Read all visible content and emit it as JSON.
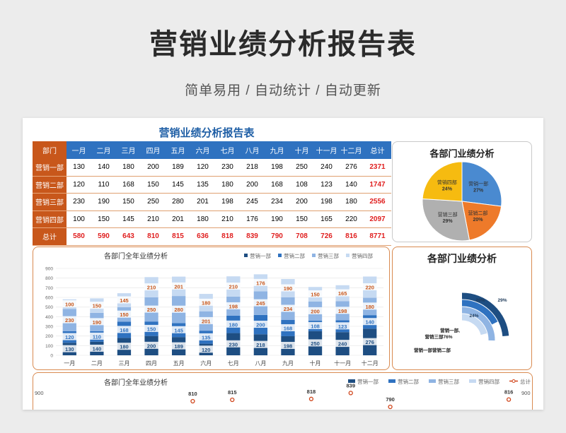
{
  "page": {
    "title": "营销业绩分析报告表",
    "subtitle": "简单易用 / 自动统计 / 自动更新"
  },
  "sheet": {
    "title": "营销业绩分析报告表",
    "columns": [
      "部门",
      "一月",
      "二月",
      "三月",
      "四月",
      "五月",
      "六月",
      "七月",
      "八月",
      "九月",
      "十月",
      "十一月",
      "十二月",
      "总计"
    ],
    "rows": [
      {
        "dept": "营销一部",
        "values": [
          "130",
          "140",
          "180",
          "200",
          "189",
          "120",
          "230",
          "218",
          "198",
          "250",
          "240",
          "276"
        ],
        "total": "2371"
      },
      {
        "dept": "营销二部",
        "values": [
          "120",
          "110",
          "168",
          "150",
          "145",
          "135",
          "180",
          "200",
          "168",
          "108",
          "123",
          "140"
        ],
        "total": "1747"
      },
      {
        "dept": "营销三部",
        "values": [
          "230",
          "190",
          "150",
          "250",
          "280",
          "201",
          "198",
          "245",
          "234",
          "200",
          "198",
          "180"
        ],
        "total": "2556"
      },
      {
        "dept": "营销四部",
        "values": [
          "100",
          "150",
          "145",
          "210",
          "201",
          "180",
          "210",
          "176",
          "190",
          "150",
          "165",
          "220"
        ],
        "total": "2097"
      }
    ],
    "total_row": {
      "dept": "总计",
      "values": [
        "580",
        "590",
        "643",
        "810",
        "815",
        "636",
        "818",
        "839",
        "790",
        "708",
        "726",
        "816"
      ],
      "total": "8771"
    }
  },
  "colors": {
    "dept1": "#1e4e82",
    "dept2": "#2f72c0",
    "dept3": "#8fb4e3",
    "dept4": "#c6daf2",
    "total": "#d0451b",
    "accent": "#c8571b"
  },
  "chart_data": [
    {
      "type": "pie",
      "title": "各部门业绩分析",
      "labels": [
        "营销一部",
        "营销二部",
        "营销三部",
        "营销四部"
      ],
      "values": [
        27,
        20,
        29,
        24
      ],
      "value_labels": [
        "27%",
        "20%",
        "29%",
        "24%"
      ]
    },
    {
      "type": "bar",
      "stacked": true,
      "title": "各部门全年业绩分析",
      "categories": [
        "一月",
        "二月",
        "三月",
        "四月",
        "五月",
        "六月",
        "七月",
        "八月",
        "九月",
        "十月",
        "十一月",
        "十二月"
      ],
      "series": [
        {
          "name": "营销一部",
          "values": [
            130,
            140,
            180,
            200,
            189,
            120,
            230,
            218,
            198,
            250,
            240,
            276
          ]
        },
        {
          "name": "营销二部",
          "values": [
            120,
            110,
            168,
            150,
            145,
            135,
            180,
            200,
            168,
            108,
            123,
            140
          ]
        },
        {
          "name": "营销三部",
          "values": [
            230,
            190,
            150,
            250,
            280,
            201,
            198,
            245,
            234,
            200,
            198,
            180
          ]
        },
        {
          "name": "营销四部",
          "values": [
            100,
            150,
            145,
            210,
            201,
            180,
            210,
            176,
            190,
            150,
            165,
            220
          ]
        }
      ],
      "ylim": [
        0,
        900
      ],
      "yticks": [
        0,
        100,
        200,
        300,
        400,
        500,
        600,
        700,
        800,
        900
      ],
      "legend": "top-right",
      "grid": true
    },
    {
      "type": "radial-bar",
      "title": "各部门业绩分析",
      "labels": [
        "营销一部",
        "营销二部",
        "营销三部",
        "营销四部"
      ],
      "values": [
        27,
        20,
        29,
        24
      ],
      "value_labels": [
        "27%",
        "20%",
        "29%",
        "24%"
      ],
      "visible_text": [
        "营销一部,",
        "营销三部76%",
        "营销一部营销二部",
        "20%",
        "29%",
        "24%"
      ]
    },
    {
      "type": "bar",
      "stacked": true,
      "title": "各部门全年业绩分析",
      "series_names": [
        "营销一部",
        "营销二部",
        "营销三部",
        "营销四部",
        "总计"
      ],
      "left_tick": "900",
      "right_tick": "900",
      "visible_total_labels": [
        {
          "category": "四月",
          "value": 810
        },
        {
          "category": "五月",
          "value": 815
        },
        {
          "category": "七月",
          "value": 818
        },
        {
          "category": "八月",
          "value": 839
        },
        {
          "category": "九月",
          "value": 790
        },
        {
          "category": "十二月",
          "value": 816
        }
      ]
    }
  ]
}
